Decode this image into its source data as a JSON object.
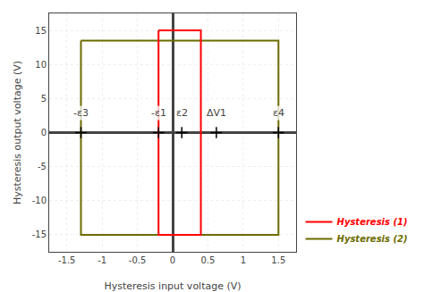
{
  "chart_data": {
    "type": "line",
    "xlabel": "Hysteresis input voltage (V)",
    "ylabel": "Hysteresis output voltage (V)",
    "xlim": [
      -1.75,
      1.75
    ],
    "ylim": [
      -17.5,
      17.5
    ],
    "xticks": [
      -1.5,
      -1.0,
      -0.5,
      0.0,
      0.5,
      1.0,
      1.5
    ],
    "yticks": [
      -15,
      -10,
      -5,
      0,
      5,
      10,
      15
    ],
    "grid": true,
    "legend": "lower right",
    "series": [
      {
        "name": "Hysteresis (1)",
        "color": "#ff0000",
        "x": [
          -0.2,
          0.4,
          0.4,
          -0.2,
          -0.2
        ],
        "values": [
          15.0,
          15.0,
          -15.0,
          -15.0,
          15.0
        ]
      },
      {
        "name": "Hysteresis (2)",
        "color": "#6b6b00",
        "x": [
          -1.3,
          1.5,
          1.5,
          -1.3,
          -1.3
        ],
        "values": [
          13.5,
          13.5,
          -15.0,
          -15.0,
          13.5
        ]
      }
    ],
    "crosses": {
      "x": [
        -1.3,
        -0.2,
        0.13,
        0.62,
        1.5
      ],
      "y": [
        0,
        0,
        0,
        0,
        0
      ],
      "color": "#000000"
    },
    "annotations": [
      {
        "text": "-ε3",
        "x": -1.3,
        "y": 1.8
      },
      {
        "text": "-ε1",
        "x": -0.2,
        "y": 1.8
      },
      {
        "text": "ε2",
        "x": 0.13,
        "y": 1.8
      },
      {
        "text": "ΔV1",
        "x": 0.62,
        "y": 1.8
      },
      {
        "text": "ε4",
        "x": 1.5,
        "y": 1.8
      }
    ]
  }
}
